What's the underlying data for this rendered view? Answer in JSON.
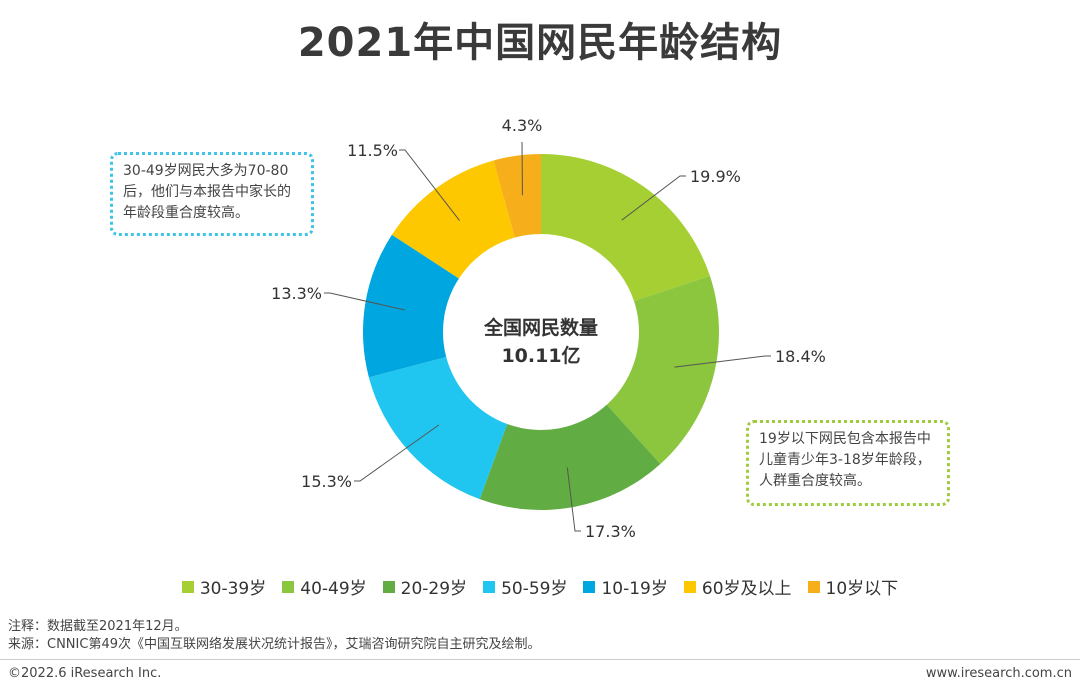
{
  "title": "2021年中国网民年龄结构",
  "center": {
    "line1": "全国网民数量",
    "line2": "10.11亿"
  },
  "callouts": {
    "left": "30-49岁网民大多为70-80后，他们与本报告中家长的年龄段重合度较高。",
    "right": "19岁以下网民包含本报告中儿童青少年3-18岁年龄段，人群重合度较高。"
  },
  "chart_data": {
    "type": "pie",
    "donut": true,
    "title": "2021年中国网民年龄结构",
    "series": [
      {
        "name": "30-39岁",
        "value": 19.9,
        "label": "19.9%",
        "color": "#a5cf32"
      },
      {
        "name": "40-49岁",
        "value": 18.4,
        "label": "18.4%",
        "color": "#8cc63f"
      },
      {
        "name": "20-29岁",
        "value": 17.3,
        "label": "17.3%",
        "color": "#62ad43"
      },
      {
        "name": "50-59岁",
        "value": 15.3,
        "label": "15.3%",
        "color": "#21c6f0"
      },
      {
        "name": "10-19岁",
        "value": 13.3,
        "label": "13.3%",
        "color": "#00a6df"
      },
      {
        "name": "60岁及以上",
        "value": 11.5,
        "label": "11.5%",
        "color": "#fdc800"
      },
      {
        "name": "10岁以下",
        "value": 4.3,
        "label": "4.3%",
        "color": "#f7ae1b"
      }
    ],
    "legend_position": "bottom"
  },
  "notes": {
    "line1": "注释：数据截至2021年12月。",
    "line2": "来源：CNNIC第49次《中国互联网络发展状况统计报告》，艾瑞咨询研究院自主研究及绘制。"
  },
  "footer": {
    "copyright": "©2022.6 iResearch Inc.",
    "website": "www.iresearch.com.cn"
  }
}
